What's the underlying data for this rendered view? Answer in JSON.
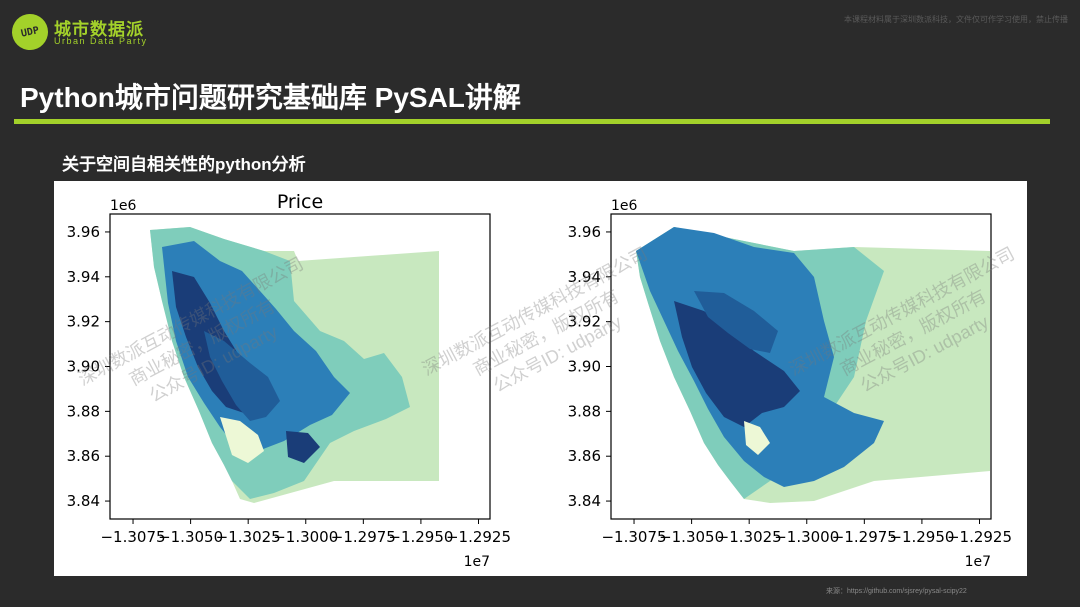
{
  "brand": {
    "badge_text": "UDP",
    "name": "城市数据派",
    "subtitle": "Urban Data Party",
    "accent_color": "#a3d12a"
  },
  "top_note": "本课程材料属于深圳数派科技，文件仅可作学习使用，禁止传播",
  "slide": {
    "title": "Python城市问题研究基础库 PySAL讲解",
    "section_label": "关于空间自相关性的python分析"
  },
  "source_caption": "来源：https://github.com/sjsrey/pysal-scipy22",
  "watermark_lines": [
    "深圳数派互动传媒科技有限公司",
    "商业秘密，版权所有",
    "公众号ID: udparty"
  ],
  "colors": {
    "background": "#2b2b2b",
    "map_palette": [
      "#edf8d6",
      "#c8e8bf",
      "#7fcdbb",
      "#2c7fb8",
      "#205d99",
      "#1a3d78"
    ]
  },
  "chart_data": [
    {
      "type": "choropleth",
      "title": "Price",
      "x_offset_label": "1e7",
      "y_offset_label": "1e6",
      "x_ticks": [
        "−1.3075",
        "−1.3050",
        "−1.3025",
        "−1.3000",
        "−1.2975",
        "−1.2950",
        "−1.2925"
      ],
      "y_ticks": [
        "3.84",
        "3.86",
        "3.88",
        "3.90",
        "3.92",
        "3.94",
        "3.96"
      ],
      "xlim": [
        -1.3085,
        -1.292
      ],
      "ylim": [
        3.832,
        3.968
      ],
      "grid": false,
      "legend": "none"
    },
    {
      "type": "choropleth",
      "title": "",
      "x_offset_label": "1e7",
      "y_offset_label": "1e6",
      "x_ticks": [
        "−1.3075",
        "−1.3050",
        "−1.3025",
        "−1.3000",
        "−1.2975",
        "−1.2950",
        "−1.2925"
      ],
      "y_ticks": [
        "3.84",
        "3.86",
        "3.88",
        "3.90",
        "3.92",
        "3.94",
        "3.96"
      ],
      "xlim": [
        -1.3085,
        -1.292
      ],
      "ylim": [
        3.832,
        3.968
      ],
      "grid": false,
      "legend": "none"
    }
  ]
}
